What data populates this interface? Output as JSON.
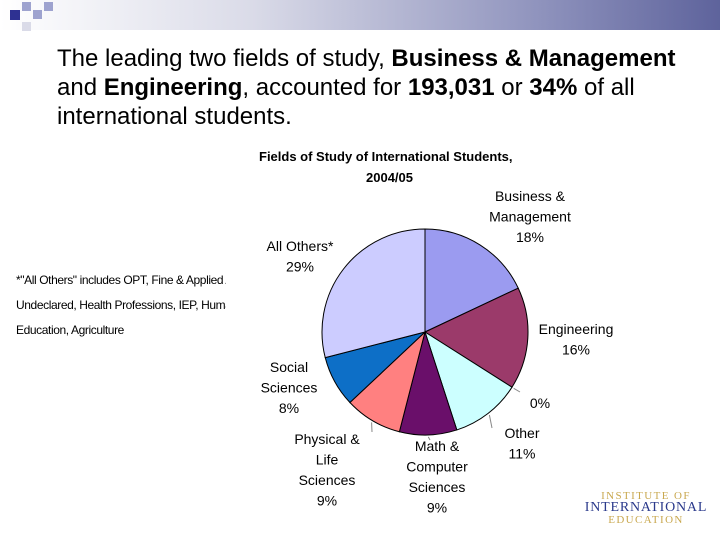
{
  "headline": {
    "p1": "The leading two fields of study, ",
    "b1": "Business & Management",
    "p2": " and ",
    "b2": "Engineering",
    "p3": ", accounted for ",
    "b3": "193,031",
    "p4": " or ",
    "b4": "34%",
    "p5": " of all international students."
  },
  "footnote": {
    "line1": "*\"All Others\" includes OPT, Fine & Applied Arts",
    "line2": "Undeclared, Health Professions, IEP, Humanities",
    "line3": "Education, Agriculture"
  },
  "logo": {
    "line1": "INSTITUTE OF",
    "line2": "INTERNATIONAL",
    "line3": "EDUCATION"
  },
  "colors": {
    "deco_dark": "#2e3192",
    "deco_light": "#9ea3cf"
  },
  "chart_data": {
    "type": "pie",
    "title": [
      "Fields of Study of International Students,",
      "2004/05"
    ],
    "slices": [
      {
        "label": [
          "Business &",
          "Management",
          "18%"
        ],
        "value": 18,
        "color": "#9b9bf0"
      },
      {
        "label": [
          "Engineering",
          "16%"
        ],
        "value": 16,
        "color": "#9b3a6a"
      },
      {
        "label": [
          "0%"
        ],
        "value": 0,
        "color": "#cccccc"
      },
      {
        "label": [
          "Other",
          "11%"
        ],
        "value": 11,
        "color": "#ccffff"
      },
      {
        "label": [
          "Math &",
          "Computer",
          "Sciences",
          "9%"
        ],
        "value": 9,
        "color": "#6a0f6a"
      },
      {
        "label": [
          "Physical &",
          "Life",
          "Sciences",
          "9%"
        ],
        "value": 9,
        "color": "#ff8080"
      },
      {
        "label": [
          "Social",
          "Sciences",
          "8%"
        ],
        "value": 8,
        "color": "#0d6fc7"
      },
      {
        "label": [
          "All Others*",
          "29%"
        ],
        "value": 29,
        "color": "#ccccff"
      }
    ]
  }
}
